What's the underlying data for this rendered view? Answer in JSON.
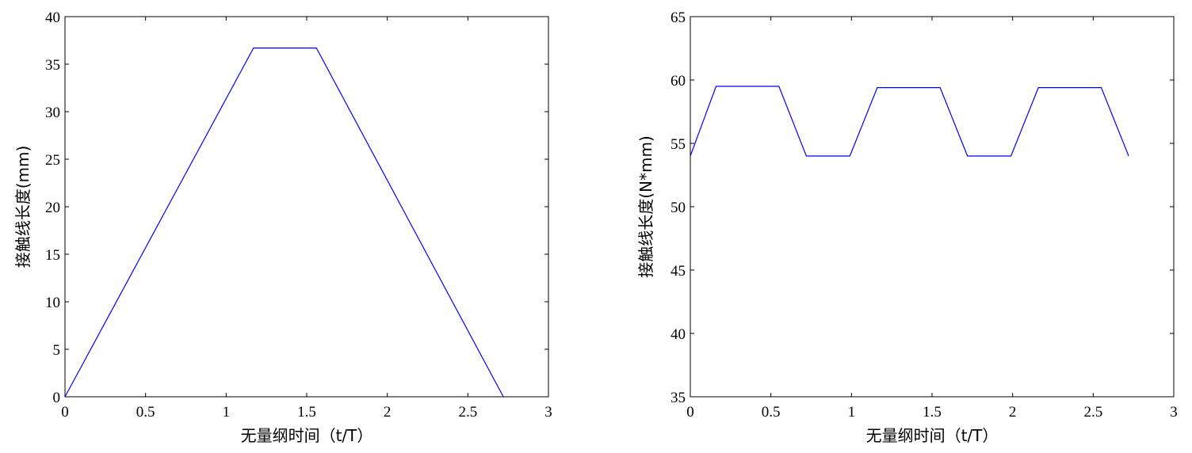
{
  "chart_data": [
    {
      "type": "line",
      "title": "",
      "xlabel": "无量纲时间（t/T）",
      "ylabel": "接触线长度(mm)",
      "xlim": [
        0,
        3
      ],
      "ylim": [
        0,
        40
      ],
      "xticks": [
        "0",
        "0.5",
        "1",
        "1.5",
        "2",
        "2.5",
        "3"
      ],
      "yticks": [
        "0",
        "5",
        "10",
        "15",
        "20",
        "25",
        "30",
        "35",
        "40"
      ],
      "grid": false,
      "line_color": "#0000ff",
      "series": [
        {
          "x": [
            0,
            1.17,
            1.56,
            2.72
          ],
          "y": [
            0,
            36.7,
            36.7,
            0
          ]
        }
      ]
    },
    {
      "type": "line",
      "title": "",
      "xlabel": "无量纲时间（t/T）",
      "ylabel": "接触线长度(N*mm)",
      "xlim": [
        0,
        3
      ],
      "ylim": [
        35,
        65
      ],
      "xticks": [
        "0",
        "0.5",
        "1",
        "1.5",
        "2",
        "2.5",
        "3"
      ],
      "yticks": [
        "35",
        "40",
        "45",
        "50",
        "55",
        "60",
        "65"
      ],
      "grid": false,
      "line_color": "#0000ff",
      "series": [
        {
          "x": [
            0,
            0.16,
            0.55,
            0.72,
            0.99,
            1.16,
            1.55,
            1.72,
            1.99,
            2.16,
            2.55,
            2.72
          ],
          "y": [
            54.0,
            59.5,
            59.5,
            54.0,
            54.0,
            59.4,
            59.4,
            54.0,
            54.0,
            59.4,
            59.4,
            54.0
          ]
        }
      ]
    }
  ]
}
